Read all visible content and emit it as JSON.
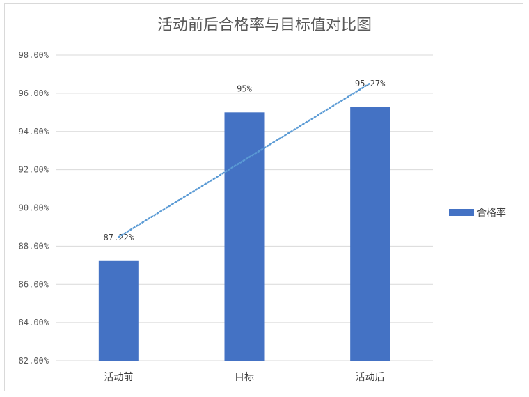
{
  "chart_data": {
    "type": "bar",
    "title": "活动前后合格率与目标值对比图",
    "categories": [
      "活动前",
      "目标",
      "活动后"
    ],
    "series": [
      {
        "name": "合格率",
        "values": [
          87.22,
          95,
          95.27
        ],
        "labels": [
          "87.22%",
          "95%",
          "95.27%"
        ]
      }
    ],
    "ylim": [
      82,
      98
    ],
    "yticks": [
      "82.00%",
      "84.00%",
      "86.00%",
      "88.00%",
      "90.00%",
      "92.00%",
      "94.00%",
      "96.00%",
      "98.00%"
    ],
    "trendline": {
      "type": "linear",
      "style": "dotted"
    },
    "grid": true,
    "legend_position": "right",
    "colors": {
      "bar": "#4472c4",
      "trend": "#5b9bd5",
      "grid": "#d9d9d9"
    }
  }
}
